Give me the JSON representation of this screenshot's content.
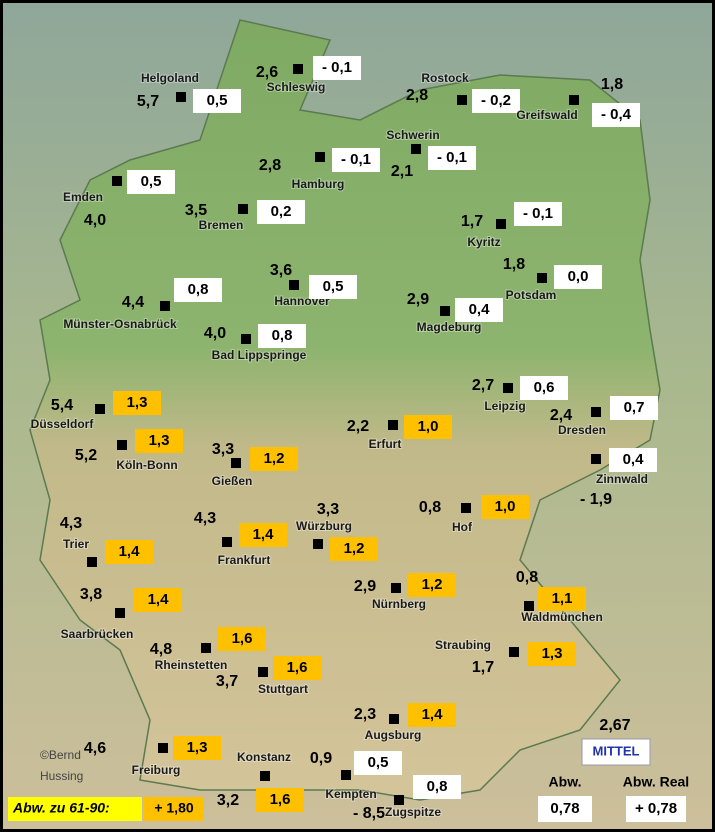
{
  "map": {
    "stations": [
      {
        "name": "Helgoland",
        "temp": "5,7",
        "abw": "0,5",
        "color": "#ffffff"
      },
      {
        "name": "Schleswig",
        "temp": "2,6",
        "abw": "- 0,1",
        "color": "#ffffff"
      },
      {
        "name": "Rostock",
        "temp": "2,8",
        "abw": "- 0,2",
        "color": "#ffffff"
      },
      {
        "name": "Greifswald",
        "temp": "1,8",
        "abw": "- 0,4",
        "color": "#ffffff"
      },
      {
        "name": "Schwerin",
        "temp": "2,1",
        "abw": "- 0,1",
        "color": "#ffffff"
      },
      {
        "name": "Hamburg",
        "temp": "2,8",
        "abw": "- 0,1",
        "color": "#ffffff"
      },
      {
        "name": "Emden",
        "temp": "4,0",
        "abw": "0,5",
        "color": "#ffffff"
      },
      {
        "name": "Bremen",
        "temp": "3,5",
        "abw": "0,2",
        "color": "#ffffff"
      },
      {
        "name": "Kyritz",
        "temp": "1,7",
        "abw": "- 0,1",
        "color": "#ffffff"
      },
      {
        "name": "Potsdam",
        "temp": "1,8",
        "abw": "0,0",
        "color": "#ffffff"
      },
      {
        "name": "Hannover",
        "temp": "3,6",
        "abw": "0,5",
        "color": "#ffffff"
      },
      {
        "name": "Münster-Osnabrück",
        "temp": "4,4",
        "abw": "0,8",
        "color": "#ffffff"
      },
      {
        "name": "Magdeburg",
        "temp": "2,9",
        "abw": "0,4",
        "color": "#ffffff"
      },
      {
        "name": "Bad Lippspringe",
        "temp": "4,0",
        "abw": "0,8",
        "color": "#ffffff"
      },
      {
        "name": "Leipzig",
        "temp": "2,7",
        "abw": "0,6",
        "color": "#ffffff"
      },
      {
        "name": "Dresden",
        "temp": "2,4",
        "abw": "0,7",
        "color": "#ffffff"
      },
      {
        "name": "Düsseldorf",
        "temp": "5,4",
        "abw": "1,3",
        "color": "#ffc000"
      },
      {
        "name": "Köln-Bonn",
        "temp": "5,2",
        "abw": "1,3",
        "color": "#ffc000"
      },
      {
        "name": "Erfurt",
        "temp": "2,2",
        "abw": "1,0",
        "color": "#ffc000"
      },
      {
        "name": "Gießen",
        "temp": "3,3",
        "abw": "1,2",
        "color": "#ffc000"
      },
      {
        "name": "Zinnwald",
        "temp": "- 1,9",
        "abw": "0,4",
        "color": "#ffffff"
      },
      {
        "name": "Hof",
        "temp": "0,8",
        "abw": "1,0",
        "color": "#ffc000"
      },
      {
        "name": "Trier",
        "temp": "4,3",
        "abw": "1,4",
        "color": "#ffc000"
      },
      {
        "name": "Würzburg",
        "temp": "3,3",
        "abw": "1,2",
        "color": "#ffc000"
      },
      {
        "name": "Frankfurt",
        "temp": "4,3",
        "abw": "1,4",
        "color": "#ffc000"
      },
      {
        "name": "Nürnberg",
        "temp": "2,9",
        "abw": "1,2",
        "color": "#ffc000"
      },
      {
        "name": "Waldmünchen",
        "temp": "0,8",
        "abw": "1,1",
        "color": "#ffc000"
      },
      {
        "name": "Saarbrücken",
        "temp": "3,8",
        "abw": "1,4",
        "color": "#ffc000"
      },
      {
        "name": "Rheinstetten",
        "temp": "4,8",
        "abw": "1,6",
        "color": "#ffc000"
      },
      {
        "name": "Stuttgart",
        "temp": "3,7",
        "abw": "1,6",
        "color": "#ffc000"
      },
      {
        "name": "Straubing",
        "temp": "1,7",
        "abw": "1,3",
        "color": "#ffc000"
      },
      {
        "name": "Augsburg",
        "temp": "2,3",
        "abw": "1,4",
        "color": "#ffc000"
      },
      {
        "name": "Freiburg",
        "temp": "4,6",
        "abw": "1,3",
        "color": "#ffc000"
      },
      {
        "name": "Konstanz",
        "temp": "3,2",
        "abw": "1,6",
        "color": "#ffc000"
      },
      {
        "name": "Kempten",
        "temp": "0,9",
        "abw": "0,5",
        "color": "#ffffff"
      },
      {
        "name": "Zugspitze",
        "temp": "- 8,5",
        "abw": "0,8",
        "color": "#ffffff"
      }
    ],
    "copyright": [
      "©Bernd",
      "Hussing"
    ],
    "legend": {
      "label": "Abw. zu 61-90:",
      "value": "+ 1,80"
    },
    "mittel": {
      "title": "MITTEL",
      "temp": "2,67",
      "abw_label": "Abw.",
      "abw": "0,78",
      "real_label": "Abw. Real",
      "real": "+ 0,78"
    }
  }
}
